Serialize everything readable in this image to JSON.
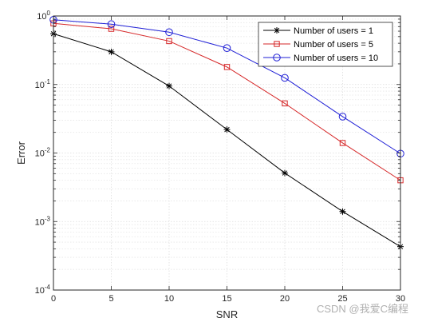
{
  "chart_data": {
    "type": "line",
    "xlabel": "SNR",
    "ylabel": "Error",
    "xlim": [
      0,
      30
    ],
    "ylim": [
      0.0001,
      1
    ],
    "yscale": "log",
    "grid": true,
    "minor_grid": true,
    "legend_placement": "top-right",
    "x_ticks": [
      {
        "value": 0,
        "label": "0"
      },
      {
        "value": 5,
        "label": "5"
      },
      {
        "value": 10,
        "label": "10"
      },
      {
        "value": 15,
        "label": "15"
      },
      {
        "value": 20,
        "label": "20"
      },
      {
        "value": 25,
        "label": "25"
      },
      {
        "value": 30,
        "label": "30"
      }
    ],
    "y_ticks": [
      {
        "value": 1,
        "base": "10",
        "exp": "0"
      },
      {
        "value": 0.1,
        "base": "10",
        "exp": "-1"
      },
      {
        "value": 0.01,
        "base": "10",
        "exp": "-2"
      },
      {
        "value": 0.001,
        "base": "10",
        "exp": "-3"
      },
      {
        "value": 0.0001,
        "base": "10",
        "exp": "-4"
      }
    ],
    "x": [
      0,
      5,
      10,
      15,
      20,
      25,
      30
    ],
    "series": [
      {
        "name": "Number of users = 1",
        "color": "#000000",
        "marker": "asterisk",
        "values": [
          0.55,
          0.3,
          0.095,
          0.022,
          0.0051,
          0.0014,
          0.00043
        ]
      },
      {
        "name": "Number of users = 5",
        "color": "#d62728",
        "marker": "square",
        "values": [
          0.78,
          0.65,
          0.43,
          0.18,
          0.053,
          0.014,
          0.004
        ]
      },
      {
        "name": "Number of users = 10",
        "color": "#1f1fd6",
        "marker": "circle",
        "values": [
          0.88,
          0.76,
          0.58,
          0.34,
          0.125,
          0.034,
          0.0098
        ]
      }
    ]
  },
  "watermark": "CSDN @我爱C编程"
}
